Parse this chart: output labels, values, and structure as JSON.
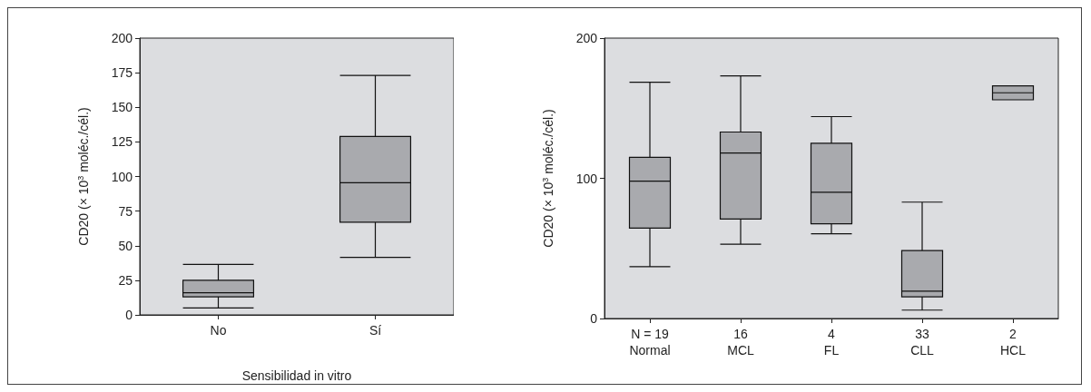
{
  "chart_data": [
    {
      "type": "box",
      "xlabel": "Sensibilidad in vitro",
      "ylabel": "CD20 (× 10$^{3}$ moléc./cél.)",
      "categories": [
        "No",
        "Sí"
      ],
      "ylim": [
        0,
        200
      ],
      "yticks": [
        0,
        25,
        50,
        75,
        100,
        125,
        150,
        175,
        200
      ],
      "grid": false,
      "series": [
        {
          "color": "#a9aaae",
          "boxes": [
            {
              "low": 5,
              "q1": 13,
              "median": 16,
              "q3": 25,
              "high": 36.5
            },
            {
              "low": 41.5,
              "q1": 67,
              "median": 95.5,
              "q3": 129,
              "high": 173
            }
          ]
        }
      ]
    },
    {
      "type": "box",
      "ylabel": "CD20 (× 10$^{3}$ moléc./cél.)",
      "categories": [
        "N = 19\nNormal",
        "16\nMCL",
        "4\nFL",
        "33\nCLL",
        "2\nHCL"
      ],
      "ylim": [
        0,
        200
      ],
      "yticks": [
        0,
        100,
        200
      ],
      "grid": false,
      "series": [
        {
          "color": "#a9aaae",
          "boxes": [
            {
              "low": 37,
              "q1": 64.5,
              "median": 98,
              "q3": 115,
              "high": 168.5
            },
            {
              "low": 53,
              "q1": 71,
              "median": 118,
              "q3": 133,
              "high": 173
            },
            {
              "low": 60.5,
              "q1": 67.5,
              "median": 90,
              "q3": 125,
              "high": 144
            },
            {
              "low": 6,
              "q1": 15.5,
              "median": 19.5,
              "q3": 48.5,
              "high": 83
            },
            {
              "low": 156,
              "q1": 156,
              "median": 161,
              "q3": 166,
              "high": 166
            }
          ]
        }
      ]
    }
  ]
}
